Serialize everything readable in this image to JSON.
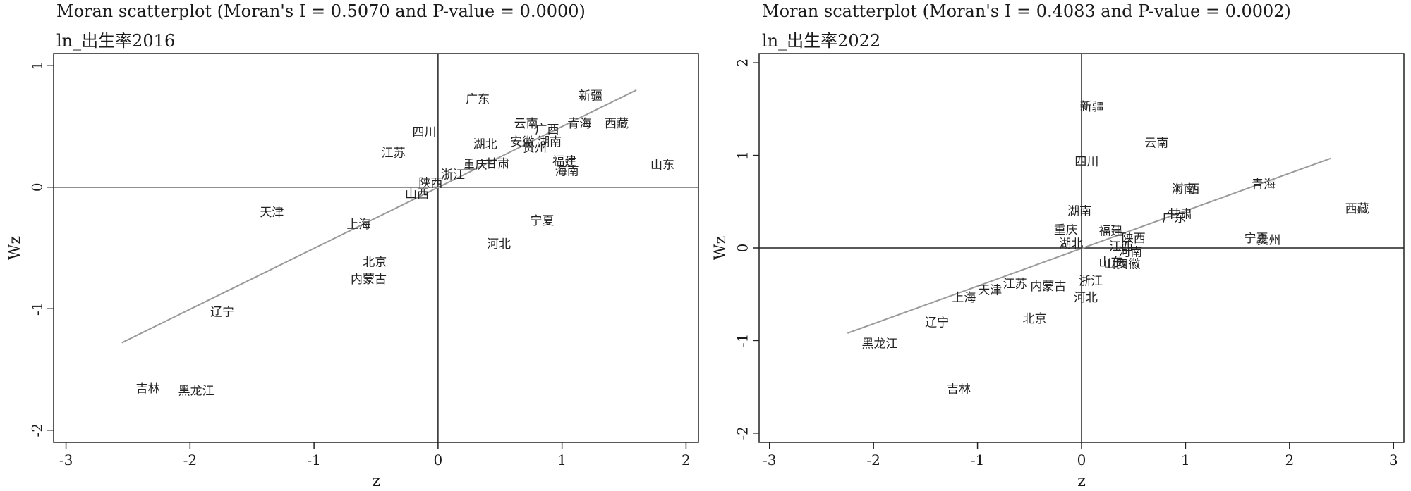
{
  "chart_data": [
    {
      "type": "scatter",
      "title": "Moran scatterplot (Moran's I = 0.5070 and P-value = 0.0000)",
      "subtitle": "ln_出生率2016",
      "xlabel": "z",
      "ylabel": "Wz",
      "xlim": [
        -3.1,
        2.1
      ],
      "ylim": [
        -2.1,
        1.1
      ],
      "xticks": [
        -3,
        -2,
        -1,
        0,
        1,
        2
      ],
      "yticks": [
        -2,
        -1,
        0,
        1
      ],
      "fit_line": {
        "x": [
          -2.55,
          1.6
        ],
        "y": [
          -1.28,
          0.8
        ]
      },
      "points": [
        {
          "label": "广东",
          "x": 0.32,
          "y": 0.72
        },
        {
          "label": "新疆",
          "x": 1.23,
          "y": 0.75
        },
        {
          "label": "云南",
          "x": 0.71,
          "y": 0.52
        },
        {
          "label": "广西",
          "x": 0.88,
          "y": 0.47
        },
        {
          "label": "青海",
          "x": 1.14,
          "y": 0.52
        },
        {
          "label": "西藏",
          "x": 1.44,
          "y": 0.52
        },
        {
          "label": "四川",
          "x": -0.11,
          "y": 0.45
        },
        {
          "label": "湖北",
          "x": 0.38,
          "y": 0.35
        },
        {
          "label": "安徽",
          "x": 0.68,
          "y": 0.37
        },
        {
          "label": "湖南",
          "x": 0.9,
          "y": 0.37
        },
        {
          "label": "贵州",
          "x": 0.78,
          "y": 0.32
        },
        {
          "label": "江苏",
          "x": -0.36,
          "y": 0.28
        },
        {
          "label": "福建",
          "x": 1.02,
          "y": 0.21
        },
        {
          "label": "海南",
          "x": 1.04,
          "y": 0.13
        },
        {
          "label": "重庆",
          "x": 0.3,
          "y": 0.18
        },
        {
          "label": "甘肃",
          "x": 0.48,
          "y": 0.19
        },
        {
          "label": "山东",
          "x": 1.81,
          "y": 0.18
        },
        {
          "label": "浙江",
          "x": 0.12,
          "y": 0.1
        },
        {
          "label": "陕西",
          "x": -0.06,
          "y": 0.03
        },
        {
          "label": "山西",
          "x": -0.17,
          "y": -0.06
        },
        {
          "label": "天津",
          "x": -1.34,
          "y": -0.21
        },
        {
          "label": "上海",
          "x": -0.64,
          "y": -0.31
        },
        {
          "label": "宁夏",
          "x": 0.84,
          "y": -0.28
        },
        {
          "label": "河北",
          "x": 0.49,
          "y": -0.47
        },
        {
          "label": "北京",
          "x": -0.51,
          "y": -0.62
        },
        {
          "label": "内蒙古",
          "x": -0.56,
          "y": -0.76
        },
        {
          "label": "辽宁",
          "x": -1.74,
          "y": -1.03
        },
        {
          "label": "吉林",
          "x": -2.34,
          "y": -1.66
        },
        {
          "label": "黑龙江",
          "x": -1.95,
          "y": -1.68
        }
      ]
    },
    {
      "type": "scatter",
      "title": "Moran scatterplot (Moran's I = 0.4083 and P-value = 0.0002)",
      "subtitle": "ln_出生率2022",
      "xlabel": "z",
      "ylabel": "Wz",
      "xlim": [
        -3.1,
        3.1
      ],
      "ylim": [
        -2.1,
        2.1
      ],
      "xticks": [
        -3,
        -2,
        -1,
        0,
        1,
        2,
        3
      ],
      "yticks": [
        -2,
        -1,
        0,
        1,
        2
      ],
      "fit_line": {
        "x": [
          -2.25,
          2.4
        ],
        "y": [
          -0.92,
          0.97
        ]
      },
      "points": [
        {
          "label": "新疆",
          "x": 0.1,
          "y": 1.52
        },
        {
          "label": "云南",
          "x": 0.72,
          "y": 1.13
        },
        {
          "label": "四川",
          "x": 0.05,
          "y": 0.93
        },
        {
          "label": "青海",
          "x": 1.75,
          "y": 0.68
        },
        {
          "label": "海南",
          "x": 0.98,
          "y": 0.63
        },
        {
          "label": "广西",
          "x": 1.02,
          "y": 0.63
        },
        {
          "label": "西藏",
          "x": 2.65,
          "y": 0.42
        },
        {
          "label": "湖南",
          "x": -0.02,
          "y": 0.39
        },
        {
          "label": "广东",
          "x": 0.89,
          "y": 0.32
        },
        {
          "label": "甘肃",
          "x": 0.95,
          "y": 0.36
        },
        {
          "label": "重庆",
          "x": -0.15,
          "y": 0.19
        },
        {
          "label": "福建",
          "x": 0.28,
          "y": 0.18
        },
        {
          "label": "陕西",
          "x": 0.5,
          "y": 0.1
        },
        {
          "label": "湖北",
          "x": -0.1,
          "y": 0.04
        },
        {
          "label": "宁夏",
          "x": 1.68,
          "y": 0.1
        },
        {
          "label": "贵州",
          "x": 1.8,
          "y": 0.08
        },
        {
          "label": "江西",
          "x": 0.38,
          "y": 0.01
        },
        {
          "label": "河南",
          "x": 0.47,
          "y": -0.05
        },
        {
          "label": "山东",
          "x": 0.28,
          "y": -0.16
        },
        {
          "label": "山西",
          "x": 0.33,
          "y": -0.18
        },
        {
          "label": "安徽",
          "x": 0.45,
          "y": -0.18
        },
        {
          "label": "浙江",
          "x": 0.09,
          "y": -0.36
        },
        {
          "label": "内蒙古",
          "x": -0.32,
          "y": -0.42
        },
        {
          "label": "河北",
          "x": 0.04,
          "y": -0.54
        },
        {
          "label": "江苏",
          "x": -0.64,
          "y": -0.39
        },
        {
          "label": "天津",
          "x": -0.88,
          "y": -0.46
        },
        {
          "label": "上海",
          "x": -1.13,
          "y": -0.54
        },
        {
          "label": "北京",
          "x": -0.45,
          "y": -0.77
        },
        {
          "label": "辽宁",
          "x": -1.39,
          "y": -0.81
        },
        {
          "label": "黑龙江",
          "x": -1.94,
          "y": -1.04
        },
        {
          "label": "吉林",
          "x": -1.18,
          "y": -1.53
        }
      ]
    }
  ]
}
